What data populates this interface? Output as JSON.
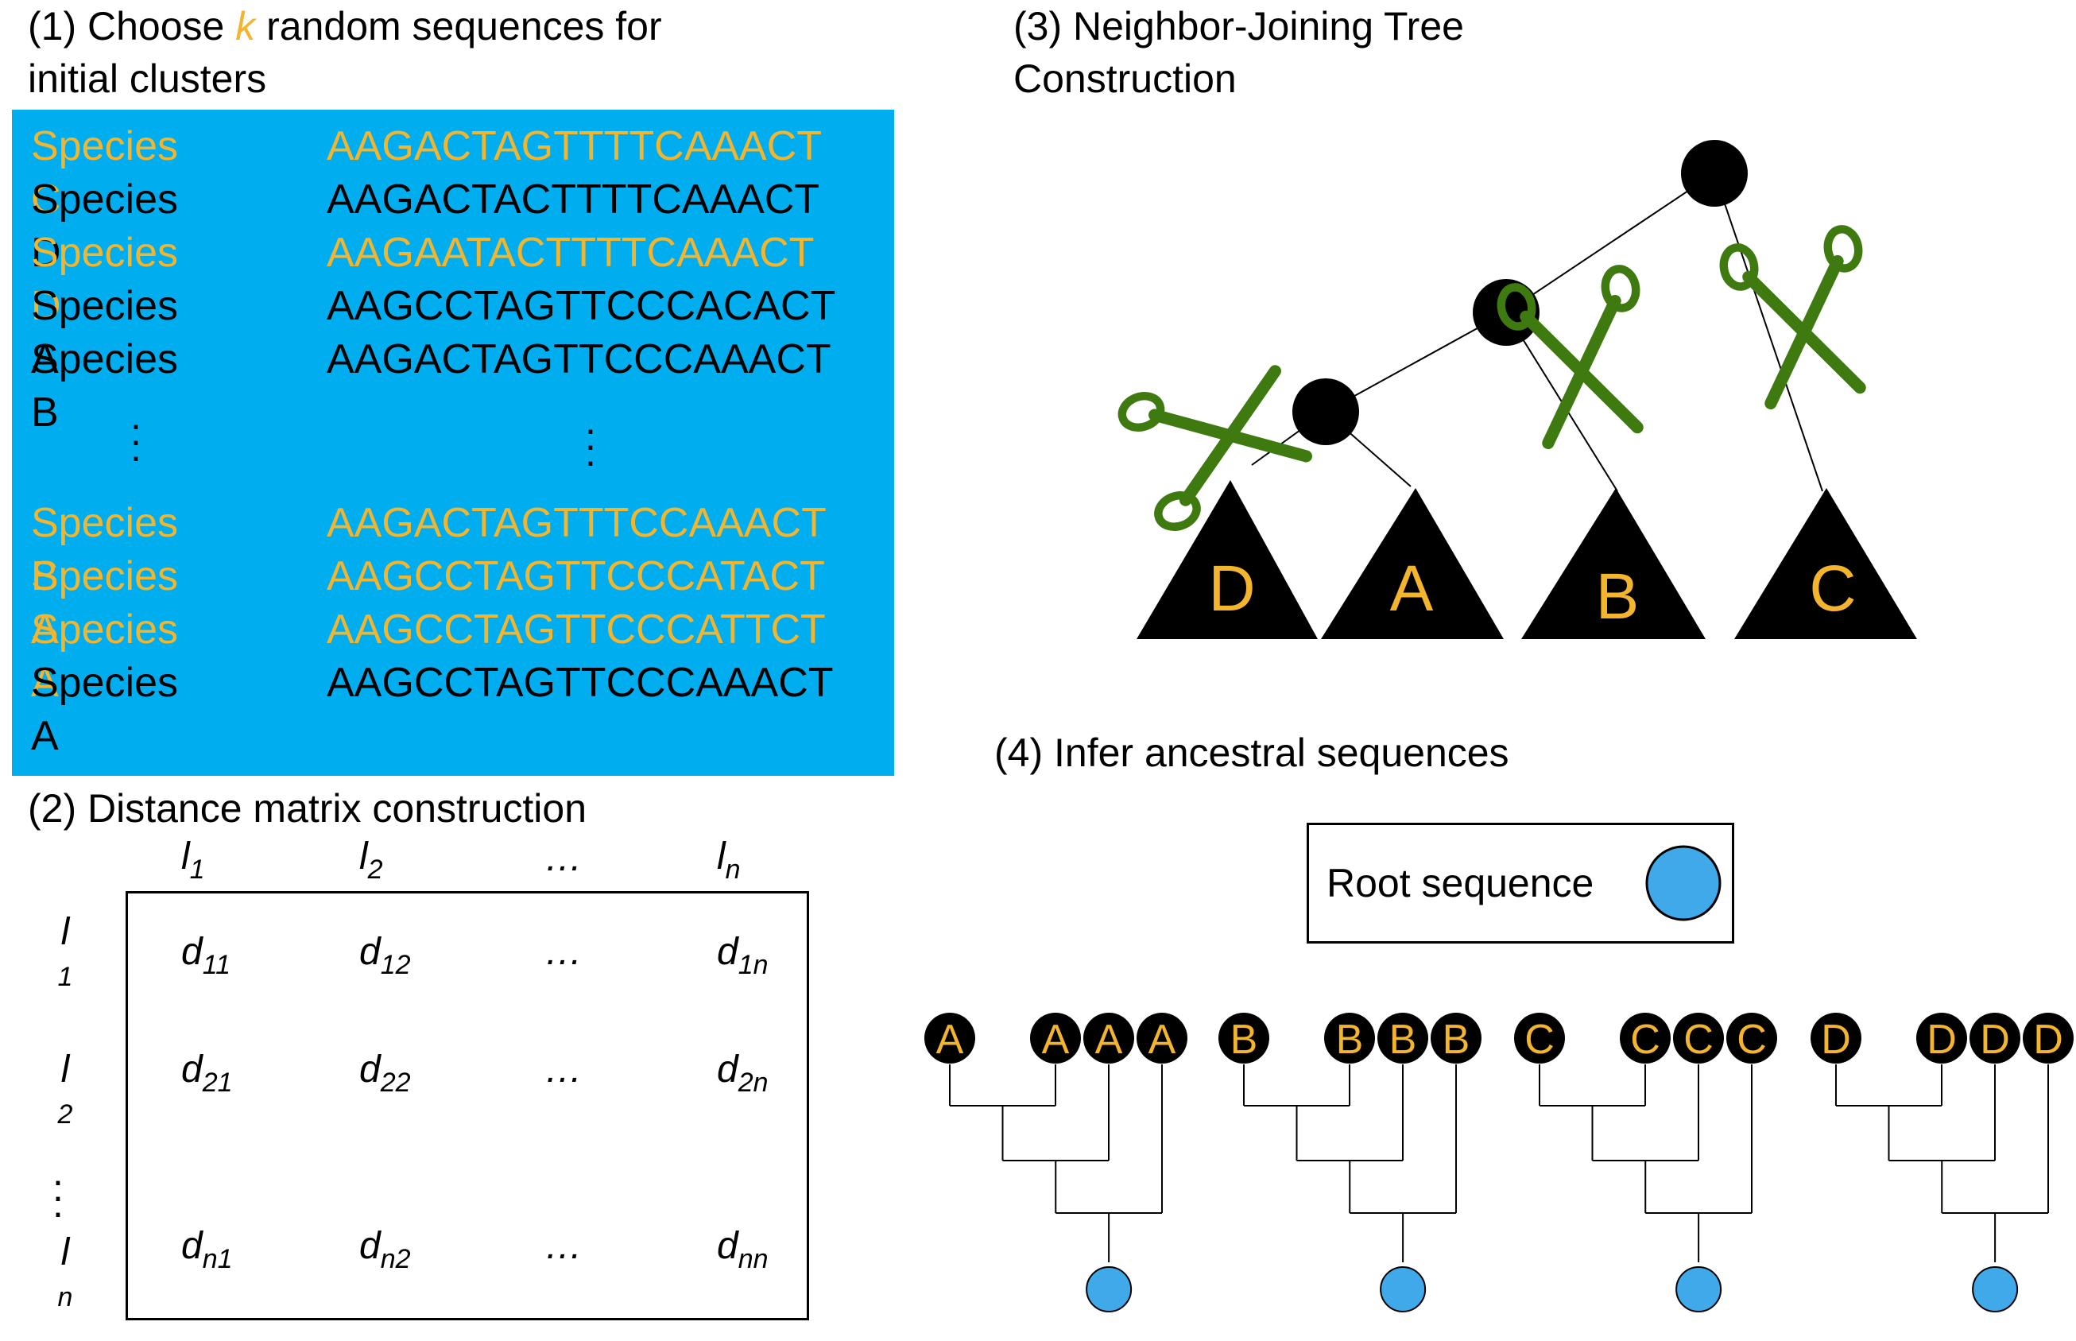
{
  "panel1": {
    "heading_prefix": "(1) Choose ",
    "heading_k": "k",
    "heading_suffix": " random sequences for",
    "heading_line2": "initial clusters",
    "rows_top": [
      {
        "species": "Species C",
        "sequence": "AAGACTAGTTTTCAAACT",
        "highlighted": true
      },
      {
        "species": "Species D",
        "sequence": "AAGACTACTTTTCAAACT",
        "highlighted": false
      },
      {
        "species": "Species D",
        "sequence": "AAGAATACTTTTCAAACT",
        "highlighted": true
      },
      {
        "species": "Species A",
        "sequence": "AAGCCTAGTTCCCACACT",
        "highlighted": false
      },
      {
        "species": "Species B",
        "sequence": "AAGACTAGTTCCCAAACT",
        "highlighted": false
      }
    ],
    "rows_bottom": [
      {
        "species": "Species B",
        "sequence": "AAGACTAGTTTCCAAACT",
        "highlighted": true
      },
      {
        "species": "Species A",
        "sequence": "AAGCCTAGTTCCCATACT",
        "highlighted": true
      },
      {
        "species": "Species A",
        "sequence": "AAGCCTAGTTCCCATTCT",
        "highlighted": true
      },
      {
        "species": "Species A",
        "sequence": "AAGCCTAGTTCCCAAACT",
        "highlighted": false
      }
    ],
    "background_color": "#00AEEF",
    "highlight_color": "#F4B52E"
  },
  "panel2": {
    "heading": "(2) Distance matrix construction",
    "col_headers": [
      {
        "base": "l",
        "sub": "1"
      },
      {
        "base": "l",
        "sub": "2"
      },
      {
        "base": "…",
        "sub": ""
      },
      {
        "base": "l",
        "sub": "n"
      }
    ],
    "row_labels": [
      {
        "base": "l",
        "sub": "1"
      },
      {
        "base": "l",
        "sub": "2"
      },
      {
        "base": "l",
        "sub": "n"
      }
    ],
    "cells": [
      [
        {
          "base": "d",
          "sub": "11"
        },
        {
          "base": "d",
          "sub": "12"
        },
        {
          "base": "…",
          "sub": ""
        },
        {
          "base": "d",
          "sub": "1n"
        }
      ],
      [
        {
          "base": "d",
          "sub": "21"
        },
        {
          "base": "d",
          "sub": "22"
        },
        {
          "base": "…",
          "sub": ""
        },
        {
          "base": "d",
          "sub": "2n"
        }
      ],
      [
        {
          "base": "d",
          "sub": "n1"
        },
        {
          "base": "d",
          "sub": "n2"
        },
        {
          "base": "…",
          "sub": ""
        },
        {
          "base": "d",
          "sub": "nn"
        }
      ]
    ]
  },
  "panel3": {
    "heading_line1": "(3) Neighbor-Joining Tree",
    "heading_line2": "Construction",
    "clades": [
      "D",
      "A",
      "B",
      "C"
    ],
    "scissors_color": "#3E7A0F",
    "label_color": "#F4B52E"
  },
  "panel4": {
    "heading": "(4) Infer ancestral sequences",
    "root_label": "Root sequence",
    "root_color": "#3FA9EA",
    "groups": [
      "A",
      "B",
      "C",
      "D"
    ]
  }
}
